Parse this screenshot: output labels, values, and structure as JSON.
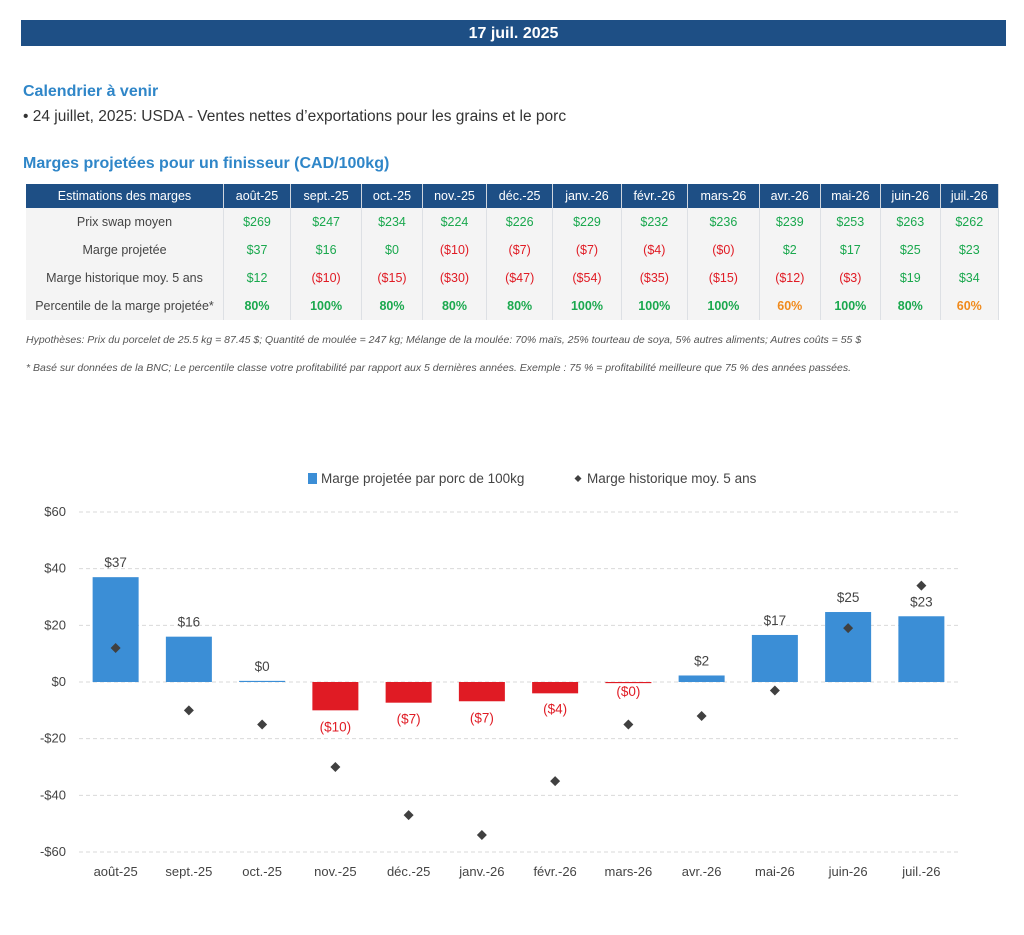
{
  "header": {
    "date": "17 juil. 2025"
  },
  "calendar": {
    "title": "Calendrier à venir",
    "item": "• 24 juillet, 2025: USDA - Ventes nettes d’exportations pour les grains et le porc"
  },
  "margins_table": {
    "title": "Marges projetées pour un finisseur (CAD/100kg)",
    "header_label": "Estimations des marges",
    "months": [
      "août-25",
      "sept.-25",
      "oct.-25",
      "nov.-25",
      "déc.-25",
      "janv.-26",
      "févr.-26",
      "mars-26",
      "avr.-26",
      "mai-26",
      "juin-26",
      "juil.-26"
    ],
    "rows": [
      {
        "label": "Prix swap moyen",
        "values": [
          "$269",
          "$247",
          "$234",
          "$224",
          "$226",
          "$229",
          "$232",
          "$236",
          "$239",
          "$253",
          "$263",
          "$262"
        ]
      },
      {
        "label": "Marge projetée",
        "values": [
          "$37",
          "$16",
          "$0",
          "($10)",
          "($7)",
          "($7)",
          "($4)",
          "($0)",
          "$2",
          "$17",
          "$25",
          "$23"
        ]
      },
      {
        "label": "Marge historique moy. 5 ans",
        "values": [
          "$12",
          "($10)",
          "($15)",
          "($30)",
          "($47)",
          "($54)",
          "($35)",
          "($15)",
          "($12)",
          "($3)",
          "$19",
          "$34"
        ]
      },
      {
        "label": "Percentile de la marge projetée*",
        "values": [
          "80%",
          "100%",
          "80%",
          "80%",
          "80%",
          "100%",
          "100%",
          "100%",
          "60%",
          "100%",
          "80%",
          "60%"
        ]
      }
    ],
    "colors": {
      "positive": "#1aa84e",
      "negative": "#e01b24",
      "percentile_high": "#1aa84e",
      "percentile_low": "#f08a1c",
      "header_bg": "#1e4f85"
    }
  },
  "notes": {
    "hypotheses": "Hypothèses: Prix du porcelet de 25.5 kg = 87.45 $; Quantité de moulée = 247 kg; Mélange de la moulée: 70% maïs, 25% tourteau de soya, 5% autres aliments; Autres coûts = 55 $",
    "percentile": "* Basé sur données de la BNC; Le percentile classe votre profitabilité par rapport aux 5 dernières années. Exemple : 75 % = profitabilité meilleure que 75 % des années passées."
  },
  "chart_data": {
    "type": "bar",
    "categories": [
      "août-25",
      "sept.-25",
      "oct.-25",
      "nov.-25",
      "déc.-25",
      "janv.-26",
      "févr.-26",
      "mars-26",
      "avr.-26",
      "mai-26",
      "juin-26",
      "juil.-26"
    ],
    "series": [
      {
        "name": "Marge projetée par porc de 100kg",
        "kind": "bar",
        "values": [
          37,
          16,
          0.4,
          -10,
          -7.3,
          -6.8,
          -4,
          -0.4,
          2.3,
          16.6,
          24.7,
          23.2
        ],
        "labels": [
          "$37",
          "$16",
          "$0",
          "($10)",
          "($7)",
          "($7)",
          "($4)",
          "($0)",
          "$2",
          "$17",
          "$25",
          "$23"
        ],
        "color_positive": "#3b8ed6",
        "color_negative": "#e01b24"
      },
      {
        "name": "Marge historique moy. 5 ans",
        "kind": "scatter",
        "values": [
          12,
          -10,
          -15,
          -30,
          -47,
          -54,
          -35,
          -15,
          -12,
          -3,
          19,
          34
        ],
        "color": "#404040"
      }
    ],
    "ylim": [
      -60,
      60
    ],
    "yticks": [
      60,
      40,
      20,
      0,
      -20,
      -40,
      -60
    ],
    "ytick_labels": [
      "$60",
      "$40",
      "$20",
      "$0",
      "-$20",
      "-$40",
      "-$60"
    ],
    "title": "",
    "xlabel": "",
    "ylabel": "",
    "grid": true,
    "legend_position": "top-center"
  }
}
